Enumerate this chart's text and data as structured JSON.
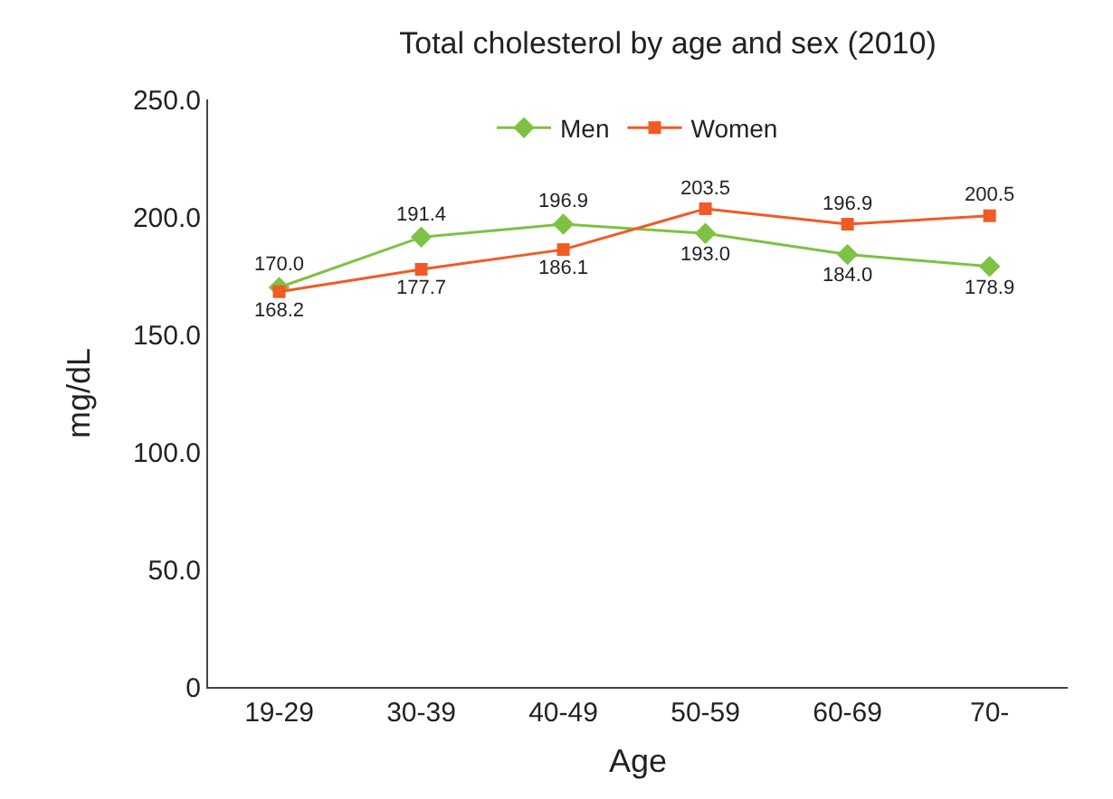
{
  "chart_data": {
    "type": "line",
    "title": "Total cholesterol by age and sex (2010)",
    "xlabel": "Age",
    "ylabel": "mg/dL",
    "categories": [
      "19-29",
      "30-39",
      "40-49",
      "50-59",
      "60-69",
      "70-"
    ],
    "series": [
      {
        "name": "Men",
        "color": "#7dc242",
        "marker": "diamond",
        "values": [
          170.0,
          191.4,
          196.9,
          193.0,
          184.0,
          178.9
        ],
        "value_labels": [
          "170.0",
          "191.4",
          "196.9",
          "193.0",
          "184.0",
          "178.9"
        ]
      },
      {
        "name": "Women",
        "color": "#f15a24",
        "marker": "square",
        "values": [
          168.2,
          177.7,
          186.1,
          203.5,
          196.9,
          200.5
        ],
        "value_labels": [
          "168.2",
          "177.7",
          "186.1",
          "203.5",
          "196.9",
          "200.5"
        ]
      }
    ],
    "ylim": [
      0,
      250
    ],
    "yticks": [
      {
        "value": 0,
        "label": "0"
      },
      {
        "value": 50,
        "label": "50.0"
      },
      {
        "value": 100,
        "label": "100.0"
      },
      {
        "value": 150,
        "label": "150.0"
      },
      {
        "value": 200,
        "label": "200.0"
      },
      {
        "value": 250,
        "label": "250.0"
      }
    ],
    "legend": "top",
    "line_style": "solid"
  }
}
